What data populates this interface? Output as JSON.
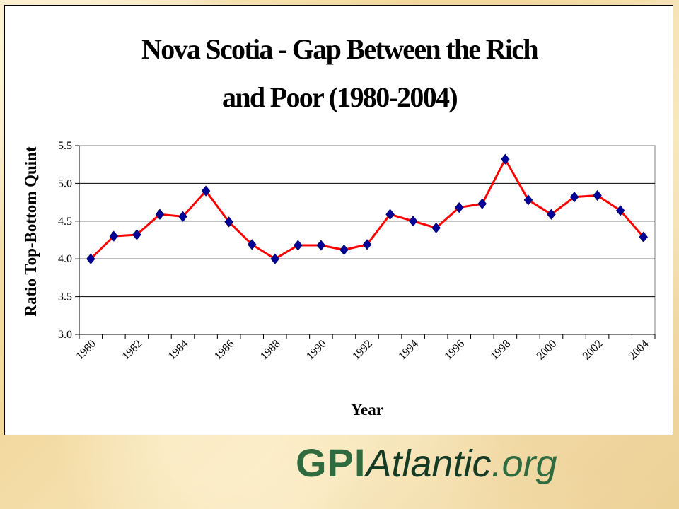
{
  "chart_data": {
    "type": "line",
    "title": "Nova Scotia - Gap Between the Rich\nand Poor (1980-2004)",
    "xlabel": "Year",
    "ylabel": "Ratio Top-Bottom Quint",
    "ylim": [
      3.0,
      5.5
    ],
    "yticks": [
      "3.0",
      "3.5",
      "4.0",
      "4.5",
      "5.0",
      "5.5"
    ],
    "grid": true,
    "legend": "none",
    "x_tick_labels": [
      "1980",
      "1982",
      "1984",
      "1986",
      "1988",
      "1990",
      "1992",
      "1994",
      "1996",
      "1998",
      "2000",
      "2002",
      "2004"
    ],
    "x": [
      1980,
      1981,
      1982,
      1983,
      1984,
      1985,
      1986,
      1987,
      1988,
      1989,
      1990,
      1991,
      1992,
      1993,
      1994,
      1995,
      1996,
      1997,
      1998,
      1999,
      2000,
      2001,
      2002,
      2003,
      2004
    ],
    "series": [
      {
        "values": [
          4.0,
          4.3,
          4.32,
          4.59,
          4.56,
          4.9,
          4.49,
          4.19,
          4.0,
          4.18,
          4.18,
          4.12,
          4.19,
          4.59,
          4.5,
          4.41,
          4.68,
          4.73,
          5.32,
          4.78,
          4.59,
          4.82,
          4.84,
          4.64,
          4.29
        ],
        "color": "#ff0000",
        "marker_color": "#000099"
      }
    ]
  },
  "logo": {
    "text_gpi": "GPI",
    "text_atlantic": "Atlantic",
    "text_org": ".org",
    "color_gpi": "#2f6b3f",
    "color_atlantic": "#163b25",
    "color_org": "#2f6b3f"
  }
}
